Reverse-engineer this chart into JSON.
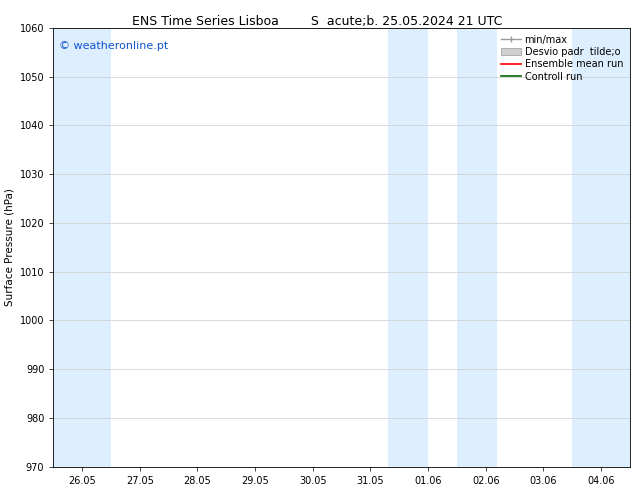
{
  "title1": "ENS Time Series Lisboa",
  "title2": "S  acute;b. 25.05.2024 21 UTC",
  "ylabel": "Surface Pressure (hPa)",
  "ylim": [
    970,
    1060
  ],
  "yticks": [
    970,
    980,
    990,
    1000,
    1010,
    1020,
    1030,
    1040,
    1050,
    1060
  ],
  "xtick_labels": [
    "26.05",
    "27.05",
    "28.05",
    "29.05",
    "30.05",
    "31.05",
    "01.06",
    "02.06",
    "03.06",
    "04.06"
  ],
  "x_values": [
    0,
    1,
    2,
    3,
    4,
    5,
    6,
    7,
    8,
    9
  ],
  "xlim": [
    -0.5,
    9.5
  ],
  "background_color": "#ffffff",
  "plot_bg_color": "#ffffff",
  "shaded_color": "#ddeeff",
  "watermark_text": "© weatheronline.pt",
  "watermark_color": "#1155cc",
  "grid_color": "#cccccc",
  "tick_fontsize": 7,
  "title_fontsize": 9,
  "ylabel_fontsize": 7.5,
  "legend_fontsize": 7
}
